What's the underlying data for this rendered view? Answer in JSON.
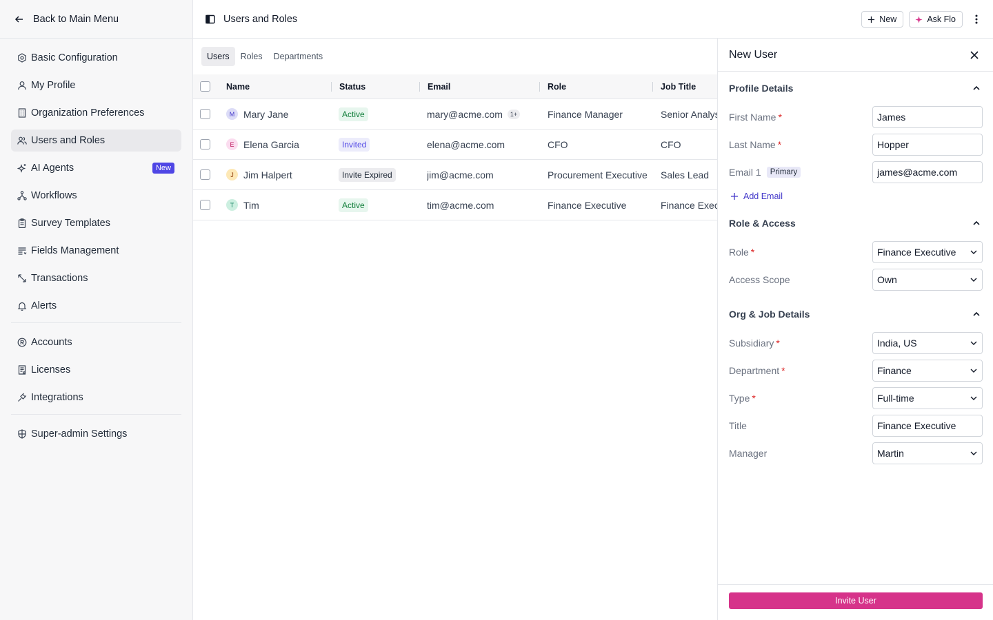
{
  "sidebar": {
    "back_label": "Back to Main Menu",
    "items": [
      {
        "label": "Basic Configuration",
        "icon": "settings-icon"
      },
      {
        "label": "My Profile",
        "icon": "user-icon"
      },
      {
        "label": "Organization Preferences",
        "icon": "building-icon"
      },
      {
        "label": "Users and Roles",
        "icon": "users-icon",
        "active": true
      },
      {
        "label": "AI Agents",
        "icon": "sparkles-icon",
        "badge": "New"
      },
      {
        "label": "Workflows",
        "icon": "workflow-icon"
      },
      {
        "label": "Survey Templates",
        "icon": "clipboard-icon"
      },
      {
        "label": "Fields Management",
        "icon": "list-icon"
      },
      {
        "label": "Transactions",
        "icon": "transactions-icon"
      },
      {
        "label": "Alerts",
        "icon": "bell-icon"
      },
      {
        "label": "Accounts",
        "icon": "registered-icon"
      },
      {
        "label": "Licenses",
        "icon": "license-icon"
      },
      {
        "label": "Integrations",
        "icon": "plug-icon"
      },
      {
        "label": "Super-admin Settings",
        "icon": "shield-icon"
      }
    ]
  },
  "header": {
    "title": "Users and Roles",
    "new_label": "New",
    "ask_label": "Ask Flo"
  },
  "tabs": [
    {
      "label": "Users",
      "active": true
    },
    {
      "label": "Roles"
    },
    {
      "label": "Departments"
    }
  ],
  "table": {
    "columns": [
      "Name",
      "Status",
      "Email",
      "Role",
      "Job Title"
    ],
    "rows": [
      {
        "initial": "M",
        "avatar_bg": "#dcdcf7",
        "avatar_fg": "#4338ca",
        "name": "Mary Jane",
        "status": "Active",
        "status_type": "active",
        "email": "mary@acme.com",
        "email_extra": "1+",
        "role": "Finance Manager",
        "title": "Senior Analyst"
      },
      {
        "initial": "E",
        "avatar_bg": "#fbdcef",
        "avatar_fg": "#be185d",
        "name": "Elena Garcia",
        "status": "Invited",
        "status_type": "invited",
        "email": "elena@acme.com",
        "email_extra": "",
        "role": "CFO",
        "title": "CFO"
      },
      {
        "initial": "J",
        "avatar_bg": "#fde8b6",
        "avatar_fg": "#92400e",
        "name": "Jim Halpert",
        "status": "Invite Expired",
        "status_type": "expired",
        "email": "jim@acme.com",
        "email_extra": "",
        "role": "Procurement Executive",
        "title": "Sales Lead"
      },
      {
        "initial": "T",
        "avatar_bg": "#ccefe0",
        "avatar_fg": "#047857",
        "name": "Tim",
        "status": "Active",
        "status_type": "active",
        "email": "tim@acme.com",
        "email_extra": "",
        "role": "Finance Executive",
        "title": "Finance Executive"
      }
    ]
  },
  "panel": {
    "title": "New User",
    "sections": {
      "profile": "Profile Details",
      "role": "Role & Access",
      "org": "Org & Job Details"
    },
    "fields": {
      "first_name": {
        "label": "First Name",
        "value": "James"
      },
      "last_name": {
        "label": "Last Name",
        "value": "Hopper"
      },
      "email": {
        "label": "Email 1",
        "tag": "Primary",
        "value": "james@acme.com"
      },
      "add_email": "Add Email",
      "role": {
        "label": "Role",
        "value": "Finance Executive"
      },
      "access_scope": {
        "label": "Access Scope",
        "value": "Own"
      },
      "subsidiary": {
        "label": "Subsidiary",
        "value": "India, US"
      },
      "department": {
        "label": "Department",
        "value": "Finance"
      },
      "type": {
        "label": "Type",
        "value": "Full-time"
      },
      "title": {
        "label": "Title",
        "value": "Finance Executive"
      },
      "manager": {
        "label": "Manager",
        "value": "Martin"
      }
    },
    "required_mark": "*",
    "submit_label": "Invite User"
  },
  "colors": {
    "accent": "#4f46e5",
    "primary_button": "#d6338a",
    "required": "#dc2626",
    "status_active_bg": "#e7f6ee",
    "status_active_fg": "#15803d",
    "status_invited_bg": "#ececfb",
    "status_invited_fg": "#4f46e5",
    "status_expired_bg": "#ececef",
    "status_expired_fg": "#1f2937"
  }
}
